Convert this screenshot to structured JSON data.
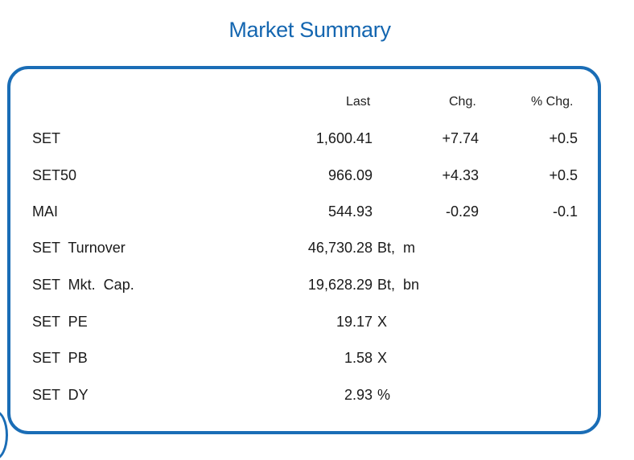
{
  "title": "Market Summary",
  "headers": {
    "last": "Last",
    "chg": "Chg.",
    "pct_chg": "% Chg."
  },
  "rows": [
    {
      "label": "SET",
      "last": "1,600.41",
      "unit": "",
      "chg": "+7.74",
      "pct": "+0.5"
    },
    {
      "label": "SET50",
      "last": "966.09",
      "unit": "",
      "chg": "+4.33",
      "pct": "+0.5"
    },
    {
      "label": "MAI",
      "last": "544.93",
      "unit": "",
      "chg": "-0.29",
      "pct": "-0.1"
    },
    {
      "label": "SET  Turnover",
      "last": "46,730.28",
      "unit": "Bt,  m",
      "chg": "",
      "pct": ""
    },
    {
      "label": "SET  Mkt.  Cap.",
      "last": "19,628.29",
      "unit": "Bt,  bn",
      "chg": "",
      "pct": ""
    },
    {
      "label": "SET  PE",
      "last": "19.17",
      "unit": "X",
      "chg": "",
      "pct": ""
    },
    {
      "label": "SET  PB",
      "last": "1.58",
      "unit": "X",
      "chg": "",
      "pct": ""
    },
    {
      "label": "SET  DY",
      "last": "2.93",
      "unit": "%",
      "chg": "",
      "pct": ""
    }
  ],
  "colors": {
    "accent": "#1a6db6",
    "title": "#1466b0"
  }
}
